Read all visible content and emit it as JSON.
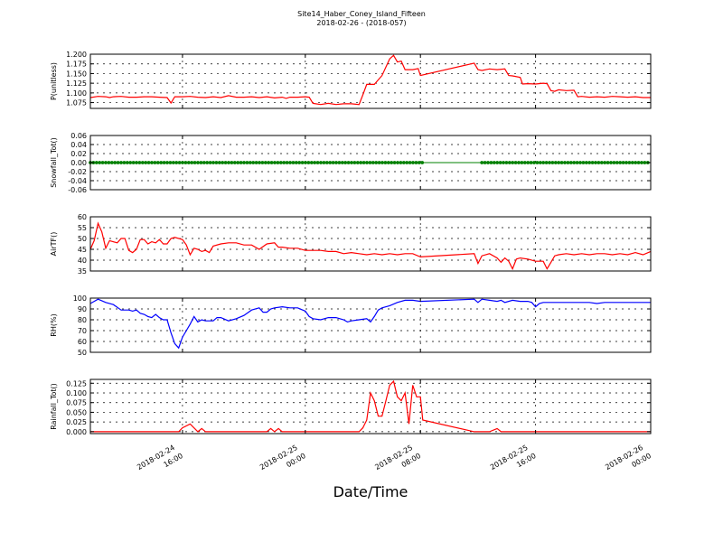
{
  "figure": {
    "title": "Site14_Haber_Coney_Island_Fifteen",
    "subtitle": "2018-02-26 - (2018-057)",
    "xlabel": "Date/Time"
  },
  "chart_data": [
    {
      "type": "line",
      "ylabel": "P(unitless)",
      "color": "#ff0000",
      "ylim": [
        1.06,
        1.2
      ],
      "yticks": [
        "1.075",
        "1.100",
        "1.125",
        "1.150",
        "1.175",
        "1.200"
      ],
      "ytick_values": [
        1.075,
        1.1,
        1.125,
        1.15,
        1.175,
        1.2
      ],
      "grid": true,
      "points": [
        [
          0,
          1.088
        ],
        [
          1,
          1.091
        ],
        [
          2,
          1.09
        ],
        [
          2.5,
          1.088
        ],
        [
          3,
          1.09
        ],
        [
          4,
          1.091
        ],
        [
          5,
          1.089
        ],
        [
          6,
          1.089
        ],
        [
          7,
          1.09
        ],
        [
          8,
          1.09
        ],
        [
          9,
          1.089
        ],
        [
          10,
          1.088
        ],
        [
          10.5,
          1.074
        ],
        [
          11,
          1.09
        ],
        [
          12,
          1.09
        ],
        [
          13,
          1.091
        ],
        [
          14,
          1.089
        ],
        [
          15,
          1.088
        ],
        [
          16,
          1.09
        ],
        [
          17,
          1.088
        ],
        [
          18,
          1.093
        ],
        [
          19,
          1.089
        ],
        [
          20,
          1.089
        ],
        [
          21,
          1.09
        ],
        [
          22,
          1.088
        ],
        [
          23,
          1.09
        ],
        [
          24,
          1.087
        ],
        [
          25,
          1.089
        ],
        [
          25.5,
          1.086
        ],
        [
          26,
          1.089
        ],
        [
          27,
          1.089
        ],
        [
          28,
          1.09
        ],
        [
          28.5,
          1.089
        ],
        [
          29,
          1.073
        ],
        [
          30,
          1.07
        ],
        [
          31,
          1.073
        ],
        [
          32,
          1.07
        ],
        [
          33,
          1.072
        ],
        [
          34,
          1.072
        ],
        [
          35,
          1.07
        ],
        [
          35.5,
          1.095
        ],
        [
          36,
          1.122
        ],
        [
          37,
          1.122
        ],
        [
          38,
          1.145
        ],
        [
          39,
          1.188
        ],
        [
          39.5,
          1.197
        ],
        [
          40,
          1.18
        ],
        [
          40.5,
          1.182
        ],
        [
          41,
          1.16
        ],
        [
          42,
          1.16
        ],
        [
          42.7,
          1.163
        ],
        [
          43,
          1.145
        ],
        [
          50,
          1.177
        ],
        [
          50.5,
          1.16
        ],
        [
          51,
          1.158
        ],
        [
          52,
          1.162
        ],
        [
          53,
          1.16
        ],
        [
          54,
          1.162
        ],
        [
          54.5,
          1.145
        ],
        [
          55,
          1.144
        ],
        [
          56,
          1.14
        ],
        [
          56.3,
          1.123
        ],
        [
          57,
          1.124
        ],
        [
          58,
          1.123
        ],
        [
          59,
          1.125
        ],
        [
          59.5,
          1.124
        ],
        [
          60,
          1.106
        ],
        [
          60.5,
          1.104
        ],
        [
          61,
          1.108
        ],
        [
          62,
          1.106
        ],
        [
          63,
          1.107
        ],
        [
          63.5,
          1.09
        ],
        [
          64,
          1.091
        ],
        [
          65,
          1.089
        ],
        [
          66,
          1.09
        ],
        [
          67,
          1.089
        ],
        [
          68,
          1.091
        ],
        [
          69,
          1.09
        ],
        [
          70,
          1.089
        ],
        [
          71,
          1.09
        ],
        [
          72,
          1.088
        ],
        [
          73,
          1.088
        ]
      ]
    },
    {
      "type": "line",
      "ylabel": "Snowfall_Tot()",
      "color": "#008000",
      "ylim": [
        -0.06,
        0.06
      ],
      "yticks": [
        "-0.06",
        "-0.04",
        "-0.02",
        "0.00",
        "0.02",
        "0.04",
        "0.06"
      ],
      "ytick_values": [
        -0.06,
        -0.04,
        -0.02,
        0,
        0.02,
        0.04,
        0.06
      ],
      "grid": true,
      "value": 0.0,
      "marker_ranges": [
        [
          0,
          43.4
        ],
        [
          51,
          73
        ]
      ],
      "line_range": [
        0,
        73
      ]
    },
    {
      "type": "line",
      "ylabel": "AirTF()",
      "color": "#ff0000",
      "ylim": [
        35,
        60
      ],
      "yticks": [
        "35",
        "40",
        "45",
        "50",
        "55",
        "60"
      ],
      "ytick_values": [
        35,
        40,
        45,
        50,
        55,
        60
      ],
      "grid": true,
      "points": [
        [
          0,
          45
        ],
        [
          0.5,
          49
        ],
        [
          1,
          57
        ],
        [
          1.5,
          53
        ],
        [
          2,
          45.5
        ],
        [
          2.5,
          49
        ],
        [
          3.5,
          48
        ],
        [
          4,
          50
        ],
        [
          4.5,
          50
        ],
        [
          5,
          44.5
        ],
        [
          5.5,
          43.5
        ],
        [
          6,
          45
        ],
        [
          6.5,
          49.5
        ],
        [
          7,
          49.5
        ],
        [
          7.5,
          47.5
        ],
        [
          8,
          48.5
        ],
        [
          8.5,
          48
        ],
        [
          9,
          49.5
        ],
        [
          9.5,
          47.5
        ],
        [
          10,
          47.5
        ],
        [
          10.5,
          50
        ],
        [
          11,
          50.5
        ],
        [
          12,
          49.5
        ],
        [
          12.5,
          47
        ],
        [
          13,
          42.5
        ],
        [
          13.5,
          45.5
        ],
        [
          14,
          45
        ],
        [
          14.5,
          44
        ],
        [
          15,
          44.5
        ],
        [
          15.5,
          43.5
        ],
        [
          16,
          46.5
        ],
        [
          17,
          47.5
        ],
        [
          18,
          48
        ],
        [
          19,
          48
        ],
        [
          20,
          47
        ],
        [
          21,
          47
        ],
        [
          22,
          45
        ],
        [
          23,
          47.5
        ],
        [
          24,
          48
        ],
        [
          24.5,
          46
        ],
        [
          25,
          46
        ],
        [
          26,
          45.5
        ],
        [
          27,
          45.5
        ],
        [
          28,
          44.5
        ],
        [
          29,
          44.5
        ],
        [
          30,
          44.5
        ],
        [
          31,
          44
        ],
        [
          32,
          44
        ],
        [
          33,
          43
        ],
        [
          34,
          43.5
        ],
        [
          35,
          43
        ],
        [
          36,
          42.5
        ],
        [
          37,
          43
        ],
        [
          38,
          42.5
        ],
        [
          39,
          43
        ],
        [
          40,
          42.5
        ],
        [
          41,
          43
        ],
        [
          42,
          43
        ],
        [
          43,
          41.5
        ],
        [
          50,
          43
        ],
        [
          50.5,
          38.5
        ],
        [
          51,
          42
        ],
        [
          52,
          43
        ],
        [
          53,
          41
        ],
        [
          53.5,
          39
        ],
        [
          54,
          41
        ],
        [
          54.5,
          39.5
        ],
        [
          55,
          36
        ],
        [
          55.5,
          40.5
        ],
        [
          56,
          41
        ],
        [
          57,
          40.5
        ],
        [
          58,
          39.5
        ],
        [
          59,
          39.5
        ],
        [
          59.5,
          36
        ],
        [
          60,
          39
        ],
        [
          60.5,
          42
        ],
        [
          61,
          42.5
        ],
        [
          62,
          43
        ],
        [
          63,
          42.5
        ],
        [
          64,
          43
        ],
        [
          65,
          42.5
        ],
        [
          66,
          43
        ],
        [
          67,
          43
        ],
        [
          68,
          42.5
        ],
        [
          69,
          43
        ],
        [
          70,
          42.5
        ],
        [
          71,
          43.5
        ],
        [
          72,
          42.5
        ],
        [
          73,
          44
        ]
      ]
    },
    {
      "type": "line",
      "ylabel": "RH(%)",
      "color": "#0000ff",
      "ylim": [
        50,
        100
      ],
      "yticks": [
        "50",
        "60",
        "70",
        "80",
        "90",
        "100"
      ],
      "ytick_values": [
        50,
        60,
        70,
        80,
        90,
        100
      ],
      "grid": true,
      "points": [
        [
          0,
          95
        ],
        [
          1,
          99
        ],
        [
          2,
          96
        ],
        [
          3,
          94
        ],
        [
          4,
          89
        ],
        [
          5,
          89
        ],
        [
          5.5,
          88
        ],
        [
          6,
          89
        ],
        [
          6.5,
          86
        ],
        [
          7,
          85
        ],
        [
          7.5,
          83
        ],
        [
          8,
          82
        ],
        [
          8.5,
          85
        ],
        [
          9,
          82
        ],
        [
          9.5,
          80
        ],
        [
          10,
          80
        ],
        [
          10.5,
          68
        ],
        [
          11,
          58
        ],
        [
          11.5,
          54
        ],
        [
          12,
          64
        ],
        [
          12.5,
          70
        ],
        [
          13,
          76
        ],
        [
          13.5,
          83
        ],
        [
          14,
          78
        ],
        [
          14.5,
          80
        ],
        [
          15,
          79
        ],
        [
          16,
          79
        ],
        [
          16.5,
          82
        ],
        [
          17,
          82
        ],
        [
          18,
          79
        ],
        [
          19,
          81
        ],
        [
          20,
          84
        ],
        [
          21,
          89
        ],
        [
          22,
          91
        ],
        [
          22.5,
          87
        ],
        [
          23,
          87
        ],
        [
          23.5,
          90
        ],
        [
          24,
          91
        ],
        [
          25,
          92
        ],
        [
          26,
          91
        ],
        [
          27,
          91
        ],
        [
          28,
          88
        ],
        [
          28.5,
          83
        ],
        [
          29,
          81
        ],
        [
          30,
          80
        ],
        [
          31,
          82
        ],
        [
          32,
          82
        ],
        [
          33,
          80
        ],
        [
          33.5,
          78
        ],
        [
          34,
          79
        ],
        [
          35,
          80
        ],
        [
          36,
          81
        ],
        [
          36.5,
          78
        ],
        [
          37,
          83
        ],
        [
          37.5,
          89
        ],
        [
          38,
          91
        ],
        [
          39,
          93
        ],
        [
          40,
          96
        ],
        [
          41,
          98
        ],
        [
          42,
          98
        ],
        [
          43,
          97
        ],
        [
          50,
          99
        ],
        [
          50.5,
          96
        ],
        [
          51,
          99
        ],
        [
          52,
          98
        ],
        [
          53,
          97
        ],
        [
          53.5,
          98
        ],
        [
          54,
          96
        ],
        [
          55,
          98
        ],
        [
          56,
          97
        ],
        [
          57,
          97
        ],
        [
          57.5,
          96
        ],
        [
          58,
          92
        ],
        [
          58.5,
          95
        ],
        [
          59,
          96
        ],
        [
          60,
          96
        ],
        [
          61,
          96
        ],
        [
          62,
          96
        ],
        [
          63,
          96
        ],
        [
          64,
          96
        ],
        [
          65,
          96
        ],
        [
          66,
          95
        ],
        [
          67,
          96
        ],
        [
          68,
          96
        ],
        [
          69,
          96
        ],
        [
          70,
          96
        ],
        [
          71,
          96
        ],
        [
          72,
          96
        ],
        [
          73,
          96
        ]
      ]
    },
    {
      "type": "line",
      "ylabel": "Rainfall_Tot()",
      "color": "#ff0000",
      "ylim": [
        -0.005,
        0.135
      ],
      "yticks": [
        "0.000",
        "0.025",
        "0.050",
        "0.075",
        "0.100",
        "0.125"
      ],
      "ytick_values": [
        0,
        0.025,
        0.05,
        0.075,
        0.1,
        0.125
      ],
      "grid": true,
      "points": [
        [
          0,
          0
        ],
        [
          11.5,
          0
        ],
        [
          12,
          0.01
        ],
        [
          13,
          0.02
        ],
        [
          14,
          0
        ],
        [
          14.5,
          0.008
        ],
        [
          15,
          0
        ],
        [
          23,
          0
        ],
        [
          23.5,
          0.008
        ],
        [
          24,
          0
        ],
        [
          24.5,
          0.008
        ],
        [
          25,
          0
        ],
        [
          35,
          0
        ],
        [
          35.5,
          0.01
        ],
        [
          36,
          0.03
        ],
        [
          36.5,
          0.1
        ],
        [
          37,
          0.08
        ],
        [
          37.5,
          0.04
        ],
        [
          38,
          0.04
        ],
        [
          38.5,
          0.08
        ],
        [
          39,
          0.12
        ],
        [
          39.5,
          0.13
        ],
        [
          40,
          0.09
        ],
        [
          40.5,
          0.08
        ],
        [
          41,
          0.1
        ],
        [
          41.5,
          0.02
        ],
        [
          42,
          0.12
        ],
        [
          42.5,
          0.09
        ],
        [
          43,
          0.09
        ],
        [
          43.3,
          0.03
        ],
        [
          50,
          0
        ],
        [
          51,
          0
        ],
        [
          52,
          0
        ],
        [
          53,
          0.008
        ],
        [
          53.5,
          0
        ],
        [
          73,
          0
        ]
      ]
    }
  ],
  "x_axis": {
    "range": [
      0,
      73
    ],
    "ticks": [
      {
        "x": 12,
        "line1": "2018-02-24",
        "line2": "16:00"
      },
      {
        "x": 28,
        "line1": "2018-02-25",
        "line2": "00:00"
      },
      {
        "x": 43,
        "line1": "2018-02-25",
        "line2": "08:00"
      },
      {
        "x": 58,
        "line1": "2018-02-25",
        "line2": "16:00"
      },
      {
        "x": 73,
        "line1": "2018-02-26",
        "line2": "00:00"
      }
    ]
  }
}
